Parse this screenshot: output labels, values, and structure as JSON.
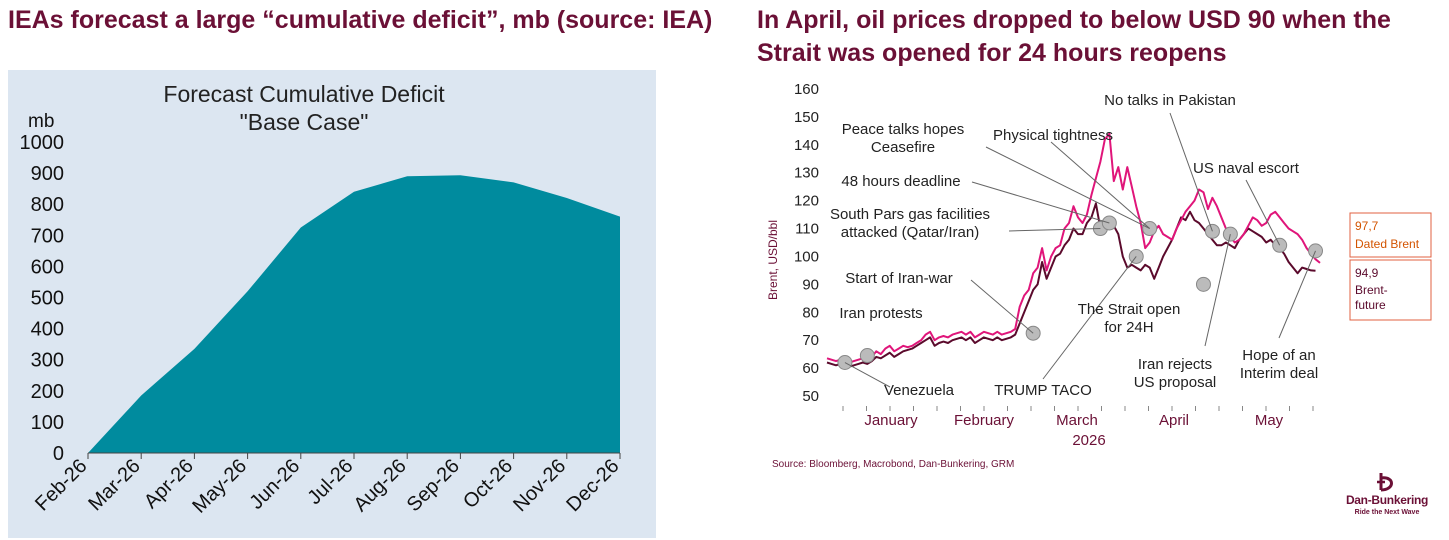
{
  "left_panel": {
    "heading": "IEAs forecast a large “cumulative deficit”, mb (source: IEA)"
  },
  "right_panel": {
    "heading": "In April, oil prices dropped to below USD 90 when the Strait was opened for 24 hours reopens",
    "source": "Source: Bloomberg, Macrobond, Dan-Bunkering, GRM"
  },
  "logo": {
    "text": "Dan-Bunkering",
    "tagline": "Ride the Next Wave"
  },
  "colors": {
    "heading": "#6b1036",
    "plot_bg": "#dce6f1",
    "area_fill": "#008b9e",
    "dated_brent": "#e0157a",
    "brent_future": "#5b0a2c",
    "label_box_border": "#e06040",
    "label_box_text": "#d35400"
  },
  "chart_data": [
    {
      "type": "area",
      "title": "Forecast Cumulative  Deficit",
      "subtitle": "\"Base Case\"",
      "ylabel": "mb",
      "ylim": [
        0,
        1000
      ],
      "yticks": [
        "0",
        "100",
        "200",
        "300",
        "400",
        "500",
        "600",
        "700",
        "800",
        "900",
        "1000"
      ],
      "categories": [
        "Feb-26",
        "Mar-26",
        "Apr-26",
        "May-26",
        "Jun-26",
        "Jul-26",
        "Aug-26",
        "Sep-26",
        "Oct-26",
        "Nov-26",
        "Dec-26"
      ],
      "series": [
        {
          "values": [
            0,
            185,
            335,
            520,
            725,
            840,
            890,
            893,
            870,
            820,
            760
          ]
        }
      ],
      "grid": false
    },
    {
      "type": "line",
      "ylabel": "Brent, USD/bbl",
      "ylim": [
        50,
        160
      ],
      "yticks": [
        "50",
        "60",
        "70",
        "80",
        "90",
        "100",
        "110",
        "120",
        "130",
        "140",
        "150",
        "160"
      ],
      "xlabels": [
        "January",
        "February",
        "March",
        "April",
        "May"
      ],
      "x_year_label": "2026",
      "x_year_under": "March",
      "series": [
        {
          "name": "Dated Brent",
          "end_label": "97,7",
          "end_name": "Dated Brent",
          "values": [
            63.5,
            63,
            62.5,
            63,
            62.5,
            62,
            62.5,
            63,
            63.5,
            63,
            64,
            66,
            65,
            67,
            68,
            66,
            67,
            68,
            67.5,
            68,
            69,
            70,
            72,
            73,
            70,
            71,
            71.5,
            71,
            72,
            72.5,
            73,
            72,
            73,
            71,
            72,
            73,
            72.5,
            72,
            73,
            72,
            72.5,
            73,
            74,
            82,
            86,
            88,
            94,
            96,
            103,
            95,
            100,
            103,
            104,
            110,
            112,
            118,
            114,
            112,
            115,
            122,
            128,
            134,
            142,
            144,
            127,
            132,
            124,
            132,
            125,
            118,
            112,
            103,
            105,
            109,
            111,
            108,
            107,
            106,
            110,
            113,
            116,
            118,
            120,
            124,
            123,
            117,
            121,
            118,
            114,
            110,
            107,
            105,
            106,
            108,
            111,
            114,
            113,
            111,
            112,
            115,
            116,
            114,
            112,
            110,
            109,
            108,
            106,
            103,
            101,
            99,
            97.7
          ],
          "marked_points": [
            [
              6,
              62
            ],
            [
              14,
              65
            ],
            [
              76,
              73
            ],
            [
              103,
              108
            ],
            [
              102,
              112
            ],
            [
              105,
              110
            ],
            [
              108,
              101
            ],
            [
              107,
              110
            ],
            [
              147,
              90
            ],
            [
              148,
              109
            ],
            [
              150,
              108
            ],
            [
              166,
              104
            ],
            [
              168,
              102
            ]
          ]
        },
        {
          "name": "Brent-future",
          "end_label": "94,9",
          "end_name": "Brent-\nfuture",
          "values": [
            62,
            61.5,
            61,
            61.5,
            61,
            60.5,
            61,
            61.5,
            62,
            61.5,
            62.5,
            64,
            63.5,
            64.5,
            65.5,
            64,
            65,
            66,
            66.5,
            67,
            68,
            69,
            70,
            71,
            68,
            69,
            69.5,
            69,
            70,
            70.5,
            71,
            70,
            71,
            69,
            70,
            71,
            70.5,
            70,
            71,
            70,
            70.5,
            71,
            72,
            76,
            80,
            84,
            88,
            90,
            98,
            92,
            96,
            100,
            101,
            104,
            106,
            110,
            108,
            108,
            112,
            114,
            119,
            110,
            112,
            110,
            111,
            108,
            100,
            96,
            97,
            96,
            95,
            97,
            96,
            92,
            96,
            100,
            103,
            106,
            110,
            114,
            113,
            116,
            113,
            112,
            110,
            108,
            106,
            104,
            104,
            105,
            104,
            103,
            106,
            108,
            110,
            109,
            108,
            107,
            105,
            106,
            104,
            103,
            101,
            98,
            96,
            94,
            96,
            95.5,
            95,
            94.9
          ]
        }
      ],
      "annotations": [
        "Peace talks hopes\nCeasefire",
        "Physical tightness",
        "48 hours deadline",
        "South Pars gas facilities\nattacked (Qatar/Iran)",
        "Start of Iran-war",
        "Iran protests",
        "Venezuela",
        "TRUMP TACO",
        "No talks in Pakistan",
        "US naval escort",
        "The Strait open\nfor 24H",
        "Iran rejects\nUS proposal",
        "Hope of an\nInterim deal"
      ]
    }
  ]
}
